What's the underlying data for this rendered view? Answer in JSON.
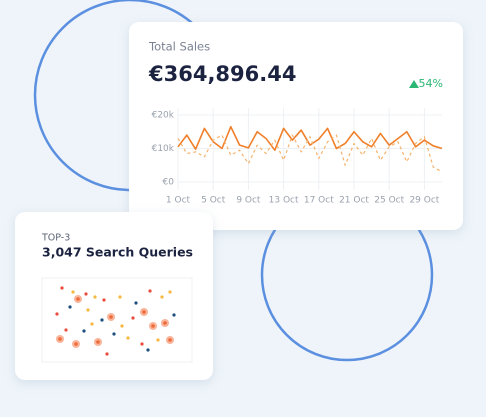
{
  "sales_card": {
    "label": "Total Sales",
    "amount": "€364,896.44",
    "change": "54%",
    "chart": {
      "type": "line",
      "x": [
        1,
        2,
        3,
        4,
        5,
        6,
        7,
        8,
        9,
        10,
        11,
        12,
        13,
        14,
        15,
        16,
        17,
        18,
        19,
        20,
        21,
        22,
        23,
        24,
        25,
        26,
        27,
        28,
        29,
        30,
        31
      ],
      "xlim": [
        1,
        31
      ],
      "xticks": [
        {
          "value": 1,
          "label": "1 Oct"
        },
        {
          "value": 5,
          "label": "5 Oct"
        },
        {
          "value": 9,
          "label": "9 Oct"
        },
        {
          "value": 13,
          "label": "13 Oct"
        },
        {
          "value": 17,
          "label": "17 Oct"
        },
        {
          "value": 21,
          "label": "21 Oct"
        },
        {
          "value": 25,
          "label": "25 Oct"
        },
        {
          "value": 29,
          "label": "29 Oct"
        }
      ],
      "ylim": [
        0,
        20000
      ],
      "yticks": [
        {
          "value": 0,
          "label": "€0"
        },
        {
          "value": 10000,
          "label": "€10k"
        },
        {
          "value": 20000,
          "label": "€20k"
        }
      ],
      "grid": true,
      "series": [
        {
          "color": "#f07f2a",
          "dashed": false,
          "values": [
            10500,
            14000,
            9800,
            16000,
            12000,
            10000,
            16500,
            11000,
            10200,
            15000,
            13000,
            9500,
            16000,
            12500,
            15500,
            11000,
            12800,
            16000,
            10000,
            11500,
            15000,
            12000,
            10500,
            14500,
            11000,
            13000,
            15000,
            10500,
            12500,
            10800,
            10000
          ]
        },
        {
          "color": "#f6b36b",
          "dashed": true,
          "values": [
            13000,
            8500,
            9000,
            7500,
            12500,
            14000,
            8000,
            9500,
            5500,
            11000,
            8500,
            12500,
            6500,
            14000,
            9000,
            13500,
            7000,
            12000,
            14000,
            5000,
            11500,
            8000,
            13000,
            6500,
            10500,
            12000,
            6000,
            11500,
            13500,
            4500,
            3000
          ]
        }
      ]
    }
  },
  "queries_card": {
    "label": "TOP-3",
    "title": "3,047 Search Queries"
  }
}
